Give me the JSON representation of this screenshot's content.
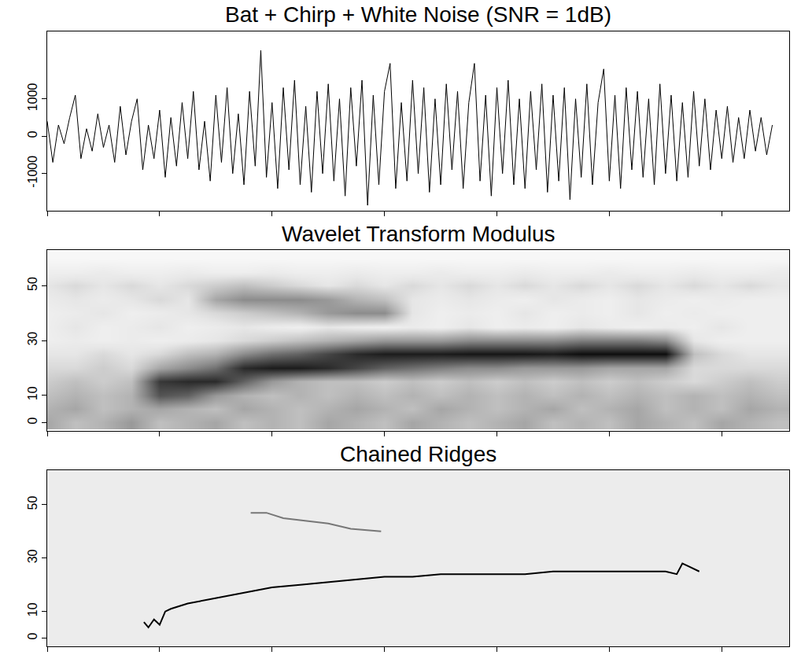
{
  "chart_data": [
    {
      "type": "line",
      "title": "Bat + Chirp + White Noise (SNR = 1dB)",
      "x": [
        0,
        50,
        100,
        150,
        200,
        250,
        300,
        350,
        400,
        450,
        500,
        550,
        600,
        650,
        700,
        750,
        800,
        850,
        900,
        950,
        1000,
        1050,
        1100,
        1150,
        1200,
        1250,
        1300,
        1350,
        1400,
        1450,
        1500,
        1550,
        1600,
        1650,
        1700,
        1750,
        1800,
        1850,
        1900,
        1950,
        2000,
        2050,
        2100,
        2150,
        2200,
        2250,
        2300,
        2350,
        2400,
        2450,
        2500,
        2550,
        2600,
        2650,
        2700,
        2750,
        2800,
        2850,
        2900,
        2950,
        3000,
        3050,
        3100,
        3150,
        3200,
        3250,
        3300,
        3350,
        3400,
        3450,
        3500,
        3550,
        3600,
        3650,
        3700,
        3750,
        3800,
        3850,
        3900,
        3950,
        4000,
        4050,
        4100,
        4150,
        4200,
        4250,
        4300,
        4350,
        4400,
        4450,
        4500,
        4550,
        4600,
        4650,
        4700,
        4750,
        4800,
        4850,
        4900,
        4950,
        5000,
        5050,
        5100,
        5150,
        5200,
        5250,
        5300,
        5350,
        5400,
        5450,
        5500,
        5550,
        5600,
        5650,
        5700,
        5750,
        5800,
        5850,
        5900,
        5950,
        6000,
        6050,
        6100,
        6150,
        6200,
        6250,
        6300,
        6350,
        6400,
        6450
      ],
      "values": [
        400,
        -700,
        300,
        -200,
        500,
        1100,
        -600,
        200,
        -400,
        600,
        -300,
        300,
        -700,
        800,
        -500,
        400,
        1000,
        -900,
        300,
        -600,
        700,
        -1100,
        500,
        -800,
        900,
        -600,
        1200,
        -900,
        400,
        -1200,
        1100,
        -700,
        1300,
        -1000,
        600,
        -1300,
        1200,
        -800,
        2300,
        -1100,
        900,
        -1400,
        1300,
        -900,
        1500,
        -1300,
        800,
        -1500,
        1200,
        -1000,
        1400,
        -1200,
        1000,
        -1600,
        1300,
        -800,
        1500,
        -1850,
        1100,
        -1300,
        1200,
        1950,
        -1400,
        900,
        -1200,
        1500,
        -1000,
        1300,
        -1500,
        1000,
        -1300,
        1400,
        -900,
        1200,
        -1400,
        900,
        1950,
        -1200,
        1100,
        -1600,
        1300,
        -1000,
        1500,
        -1300,
        1000,
        -1400,
        1200,
        -900,
        1400,
        -1500,
        1100,
        -1200,
        1300,
        -1700,
        1000,
        -1100,
        1400,
        -1300,
        900,
        1800,
        -1200,
        1100,
        -1400,
        1300,
        -900,
        1200,
        -1100,
        1000,
        -1300,
        1400,
        -1000,
        1100,
        -1200,
        900,
        -1100,
        1200,
        -800,
        1000,
        -900,
        700,
        -600,
        800,
        -700,
        500,
        -600,
        700,
        -400,
        500,
        -500,
        300
      ],
      "color": "#000000",
      "xlim": [
        0,
        6600
      ],
      "xticks": [
        0,
        1000,
        2000,
        3000,
        4000,
        5000,
        6000
      ],
      "ylim": [
        -2000,
        2800
      ],
      "yticks": [
        -1000,
        0,
        1000
      ],
      "tick_labels": "y",
      "grid": false
    },
    {
      "type": "heatmap",
      "title": "Wavelet Transform Modulus",
      "x": [
        0,
        250,
        500,
        750,
        1000,
        1250,
        1500,
        1750,
        2000,
        2250,
        2500,
        2750,
        3000,
        3250,
        3500,
        3750,
        4000,
        4250,
        4500,
        4750,
        5000,
        5250,
        5500,
        5750,
        6000,
        6250,
        6500
      ],
      "y": [
        0,
        5,
        10,
        15,
        20,
        25,
        30,
        35,
        40,
        45,
        50,
        55,
        60
      ],
      "z": [
        [
          0.4,
          0.3,
          0.35,
          0.45,
          0.3,
          0.35,
          0.4,
          0.3,
          0.35,
          0.3,
          0.4,
          0.35,
          0.3,
          0.4,
          0.35,
          0.3,
          0.35,
          0.4,
          0.3,
          0.35,
          0.3,
          0.4,
          0.35,
          0.3,
          0.4,
          0.35,
          0.3
        ],
        [
          0.35,
          0.4,
          0.3,
          0.35,
          0.4,
          0.35,
          0.3,
          0.4,
          0.35,
          0.3,
          0.35,
          0.4,
          0.35,
          0.3,
          0.4,
          0.35,
          0.3,
          0.35,
          0.4,
          0.3,
          0.35,
          0.4,
          0.3,
          0.35,
          0.3,
          0.4,
          0.35
        ],
        [
          0.3,
          0.35,
          0.3,
          0.35,
          0.7,
          0.65,
          0.45,
          0.35,
          0.3,
          0.35,
          0.3,
          0.35,
          0.3,
          0.35,
          0.3,
          0.35,
          0.3,
          0.35,
          0.3,
          0.35,
          0.3,
          0.35,
          0.3,
          0.35,
          0.3,
          0.35,
          0.3
        ],
        [
          0.25,
          0.3,
          0.25,
          0.3,
          0.8,
          0.85,
          0.85,
          0.65,
          0.45,
          0.35,
          0.3,
          0.3,
          0.25,
          0.3,
          0.25,
          0.3,
          0.25,
          0.3,
          0.25,
          0.3,
          0.25,
          0.3,
          0.25,
          0.2,
          0.25,
          0.3,
          0.25
        ],
        [
          0.2,
          0.2,
          0.25,
          0.2,
          0.4,
          0.5,
          0.6,
          0.85,
          0.9,
          0.9,
          0.85,
          0.75,
          0.65,
          0.6,
          0.55,
          0.5,
          0.5,
          0.45,
          0.45,
          0.45,
          0.4,
          0.4,
          0.4,
          0.2,
          0.2,
          0.2,
          0.2
        ],
        [
          0.15,
          0.15,
          0.2,
          0.15,
          0.2,
          0.3,
          0.35,
          0.5,
          0.6,
          0.65,
          0.75,
          0.85,
          0.9,
          0.9,
          0.9,
          0.92,
          0.92,
          0.92,
          0.9,
          0.95,
          0.95,
          0.95,
          0.95,
          0.3,
          0.2,
          0.15,
          0.15
        ],
        [
          0.1,
          0.12,
          0.1,
          0.12,
          0.1,
          0.12,
          0.15,
          0.2,
          0.25,
          0.3,
          0.35,
          0.4,
          0.45,
          0.45,
          0.45,
          0.5,
          0.5,
          0.5,
          0.5,
          0.55,
          0.55,
          0.55,
          0.5,
          0.15,
          0.1,
          0.1,
          0.1
        ],
        [
          0.1,
          0.15,
          0.1,
          0.12,
          0.15,
          0.1,
          0.12,
          0.15,
          0.12,
          0.1,
          0.15,
          0.12,
          0.1,
          0.12,
          0.1,
          0.15,
          0.1,
          0.12,
          0.1,
          0.15,
          0.12,
          0.1,
          0.12,
          0.1,
          0.15,
          0.1,
          0.1
        ],
        [
          0.1,
          0.12,
          0.15,
          0.1,
          0.12,
          0.15,
          0.2,
          0.25,
          0.3,
          0.35,
          0.45,
          0.5,
          0.5,
          0.15,
          0.1,
          0.12,
          0.1,
          0.15,
          0.1,
          0.12,
          0.1,
          0.15,
          0.1,
          0.12,
          0.1,
          0.1,
          0.1
        ],
        [
          0.12,
          0.15,
          0.12,
          0.15,
          0.2,
          0.15,
          0.4,
          0.5,
          0.5,
          0.5,
          0.45,
          0.35,
          0.3,
          0.15,
          0.12,
          0.15,
          0.12,
          0.1,
          0.15,
          0.12,
          0.1,
          0.15,
          0.12,
          0.1,
          0.12,
          0.1,
          0.1
        ],
        [
          0.15,
          0.2,
          0.15,
          0.2,
          0.15,
          0.2,
          0.25,
          0.3,
          0.25,
          0.2,
          0.15,
          0.2,
          0.15,
          0.2,
          0.15,
          0.2,
          0.15,
          0.2,
          0.15,
          0.2,
          0.15,
          0.2,
          0.15,
          0.2,
          0.15,
          0.2,
          0.15
        ],
        [
          0.1,
          0.1,
          0.12,
          0.1,
          0.1,
          0.12,
          0.1,
          0.1,
          0.12,
          0.1,
          0.1,
          0.12,
          0.1,
          0.1,
          0.12,
          0.1,
          0.1,
          0.12,
          0.1,
          0.1,
          0.12,
          0.1,
          0.1,
          0.12,
          0.1,
          0.1,
          0.12
        ],
        [
          0.05,
          0.05,
          0.05,
          0.05,
          0.05,
          0.05,
          0.05,
          0.05,
          0.05,
          0.05,
          0.05,
          0.05,
          0.05,
          0.05,
          0.05,
          0.05,
          0.05,
          0.05,
          0.05,
          0.05,
          0.05,
          0.05,
          0.05,
          0.05,
          0.05,
          0.05,
          0.05
        ]
      ],
      "zlim": [
        0,
        1
      ],
      "xlim": [
        0,
        6600
      ],
      "xticks": [
        0,
        1000,
        2000,
        3000,
        4000,
        5000,
        6000
      ],
      "ylim": [
        -3,
        63
      ],
      "yticks": [
        0,
        10,
        30,
        50
      ],
      "tick_labels": "y",
      "grid": false
    },
    {
      "type": "line",
      "title": "Chained Ridges",
      "series": [
        {
          "color": "#777777",
          "x": [
            1810,
            1950,
            2100,
            2300,
            2500,
            2700,
            2970
          ],
          "values": [
            47,
            47,
            45,
            44,
            43,
            41,
            40
          ]
        },
        {
          "color": "#000000",
          "x": [
            860,
            900,
            950,
            1000,
            1050,
            1100,
            1250,
            1500,
            1750,
            2000,
            2250,
            2500,
            2750,
            3000,
            3250,
            3500,
            3750,
            4000,
            4250,
            4500,
            4750,
            5000,
            5250,
            5500,
            5600,
            5650,
            5700,
            5800
          ],
          "values": [
            6,
            4,
            7,
            5,
            10,
            11,
            13,
            15,
            17,
            19,
            20,
            21,
            22,
            23,
            23,
            24,
            24,
            24,
            24,
            25,
            25,
            25,
            25,
            25,
            24,
            28,
            27,
            25
          ]
        }
      ],
      "xlim": [
        0,
        6600
      ],
      "xticks": [
        0,
        1000,
        2000,
        3000,
        4000,
        5000,
        6000
      ],
      "ylim": [
        -3,
        63
      ],
      "yticks": [
        0,
        10,
        30,
        50
      ],
      "tick_labels": "y",
      "grid": false
    }
  ]
}
